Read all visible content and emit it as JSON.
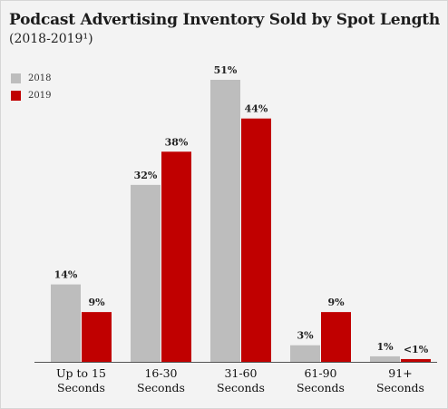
{
  "header": {
    "title": "Podcast Advertising Inventory Sold by Spot Length",
    "subtitle": "(2018-2019¹)"
  },
  "colors": {
    "series_2018": "#bdbdbd",
    "series_2019": "#c00000",
    "background": "#f3f3f3",
    "axis": "#555555"
  },
  "chart_data": {
    "type": "bar",
    "title": "Podcast Advertising Inventory Sold by Spot Length",
    "subtitle": "(2018-2019¹)",
    "categories": [
      [
        "Up to 15",
        "Seconds"
      ],
      [
        "16-30",
        "Seconds"
      ],
      [
        "31-60",
        "Seconds"
      ],
      [
        "61-90",
        "Seconds"
      ],
      [
        "91+",
        "Seconds"
      ]
    ],
    "series": [
      {
        "name": "2018",
        "values": [
          14,
          32,
          51,
          3,
          1
        ],
        "labels": [
          "14%",
          "32%",
          "51%",
          "3%",
          "1%"
        ]
      },
      {
        "name": "2019",
        "values": [
          9,
          38,
          44,
          9,
          0.5
        ],
        "labels": [
          "9%",
          "38%",
          "44%",
          "9%",
          "<1%"
        ]
      }
    ],
    "legend": "top-left",
    "grid": false,
    "ylim": [
      0,
      51
    ]
  }
}
